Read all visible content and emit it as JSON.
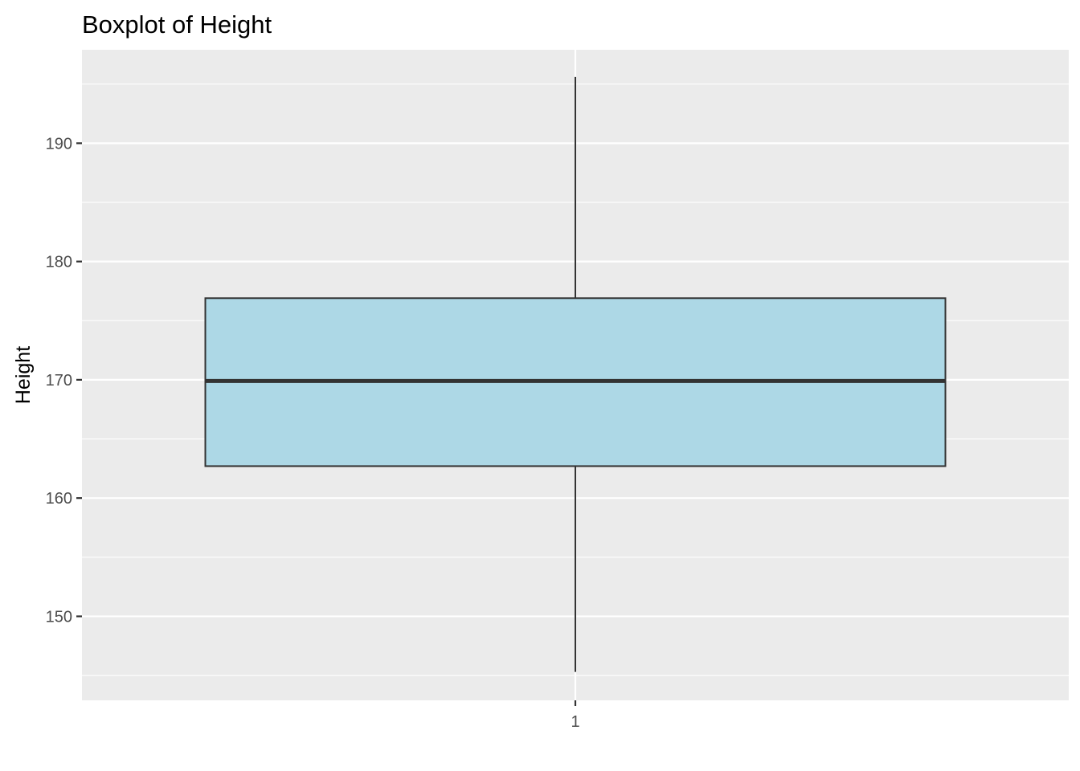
{
  "chart_data": {
    "type": "boxplot",
    "title": "Boxplot of Height",
    "xlabel": "",
    "ylabel": "Height",
    "categories": [
      "1"
    ],
    "boxes": [
      {
        "category": "1",
        "whisker_low": 145.3,
        "q1": 162.7,
        "median": 169.9,
        "q3": 176.9,
        "whisker_high": 195.6
      }
    ],
    "yticks": [
      150,
      160,
      170,
      180,
      190
    ],
    "ylim": [
      142.9,
      197.9
    ],
    "grid": true,
    "colors": {
      "box_fill": "#add8e6",
      "box_stroke": "#333333",
      "panel": "#ebebeb",
      "grid": "#ffffff"
    }
  }
}
